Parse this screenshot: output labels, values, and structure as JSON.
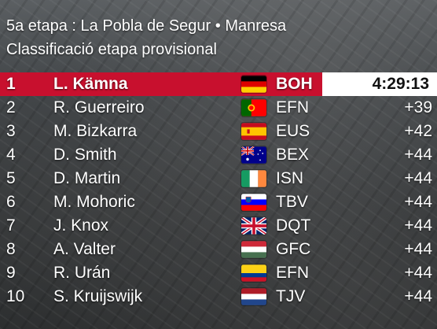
{
  "header": {
    "stage_line": "5a etapa : La Pobla de Segur • Manresa",
    "classification_line": "Classificació etapa provisional"
  },
  "colors": {
    "leader_row_bg": "#c8102e",
    "leader_time_bg": "#ffffff",
    "text": "#ffffff"
  },
  "standings": [
    {
      "pos": "1",
      "rider": "L. Kämna",
      "flag": "germany-flag-icon",
      "team": "BOH",
      "time": "4:29:13"
    },
    {
      "pos": "2",
      "rider": "R. Guerreiro",
      "flag": "portugal-flag-icon",
      "team": "EFN",
      "time": "+39"
    },
    {
      "pos": "3",
      "rider": "M. Bizkarra",
      "flag": "spain-flag-icon",
      "team": "EUS",
      "time": "+42"
    },
    {
      "pos": "4",
      "rider": "D. Smith",
      "flag": "australia-flag-icon",
      "team": "BEX",
      "time": "+44"
    },
    {
      "pos": "5",
      "rider": "D. Martin",
      "flag": "ireland-flag-icon",
      "team": "ISN",
      "time": "+44"
    },
    {
      "pos": "6",
      "rider": "M. Mohoric",
      "flag": "slovenia-flag-icon",
      "team": "TBV",
      "time": "+44"
    },
    {
      "pos": "7",
      "rider": "J. Knox",
      "flag": "united-kingdom-flag-icon",
      "team": "DQT",
      "time": "+44"
    },
    {
      "pos": "8",
      "rider": "A. Valter",
      "flag": "hungary-flag-icon",
      "team": "GFC",
      "time": "+44"
    },
    {
      "pos": "9",
      "rider": "R. Urán",
      "flag": "colombia-flag-icon",
      "team": "EFN",
      "time": "+44"
    },
    {
      "pos": "10",
      "rider": "S. Kruijswijk",
      "flag": "netherlands-flag-icon",
      "team": "TJV",
      "time": "+44"
    }
  ]
}
